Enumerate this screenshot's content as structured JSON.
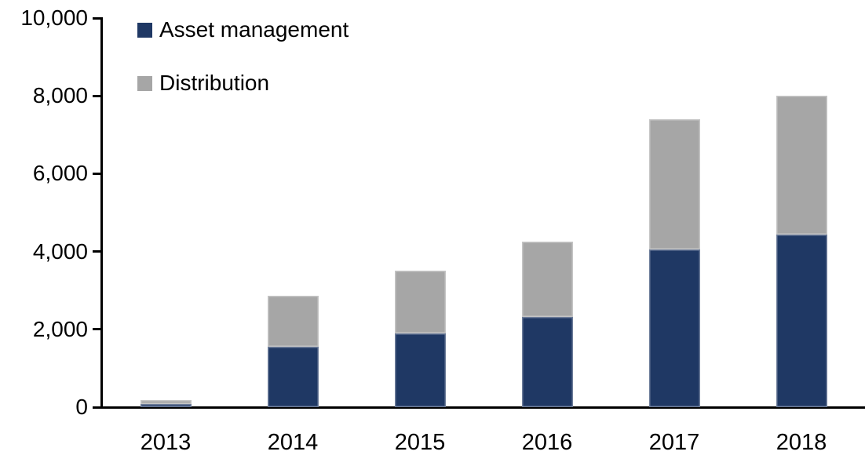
{
  "chart_data": {
    "type": "bar",
    "stacked": true,
    "title": "",
    "xlabel": "",
    "ylabel": "",
    "categories": [
      "2013",
      "2014",
      "2015",
      "2016",
      "2017",
      "2018"
    ],
    "series": [
      {
        "name": "Asset management",
        "color": "#1F3864",
        "values": [
          75,
          1550,
          1900,
          2320,
          4050,
          4430
        ]
      },
      {
        "name": "Distribution",
        "color": "#A6A6A6",
        "values": [
          110,
          1320,
          1600,
          1930,
          3350,
          3570
        ]
      }
    ],
    "ylim": [
      0,
      10000
    ],
    "ytick_values": [
      0,
      2000,
      4000,
      6000,
      8000,
      10000
    ],
    "ytick_labels": [
      "0",
      "2,000",
      "4,000",
      "6,000",
      "8,000",
      "10,000"
    ],
    "legend_position": "top-left-inside",
    "grid": false,
    "axis_color": "#000000",
    "text_color": "#000000",
    "background_color": "#FFFFFF"
  }
}
